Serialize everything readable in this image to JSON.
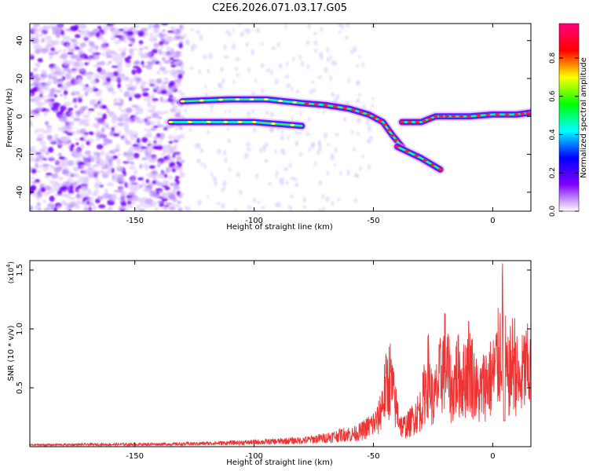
{
  "chart_data": [
    {
      "type": "heatmap",
      "title": "C2E6.2026.071.03.17.G05",
      "xlabel": "Height of straight line (km)",
      "ylabel": "Frequency (Hz)",
      "xlim": [
        -194,
        16
      ],
      "ylim": [
        -50,
        49
      ],
      "xticks": [
        "-150",
        "-100",
        "-50",
        "0"
      ],
      "yticks": [
        "-40",
        "-20",
        "0",
        "20",
        "40"
      ],
      "colorbar": {
        "label": "Normalized spectral amplitude",
        "ticks": [
          "0.0",
          "0.2",
          "0.4",
          "0.6",
          "0.8"
        ],
        "range": [
          0,
          0.98
        ],
        "stops": [
          "#ffffff",
          "#8000ff",
          "#0000ff",
          "#00ffff",
          "#00ff00",
          "#ffff00",
          "#ff0000",
          "#ff0080"
        ]
      },
      "noise_region_km": [
        -194,
        -130
      ],
      "ridges": [
        {
          "name": "upper-branch",
          "points": [
            [
              -130,
              8
            ],
            [
              -110,
              9
            ],
            [
              -95,
              9
            ],
            [
              -80,
              7
            ],
            [
              -70,
              6
            ],
            [
              -60,
              4
            ],
            [
              -52,
              1
            ],
            [
              -46,
              -3
            ],
            [
              -42,
              -10
            ],
            [
              -38,
              -16
            ]
          ]
        },
        {
          "name": "lower-branch",
          "points": [
            [
              -135,
              -3
            ],
            [
              -115,
              -3
            ],
            [
              -100,
              -3
            ],
            [
              -80,
              -5
            ]
          ]
        },
        {
          "name": "tail-branch",
          "points": [
            [
              -40,
              -16
            ],
            [
              -30,
              -22
            ],
            [
              -22,
              -28
            ]
          ]
        },
        {
          "name": "right-branch",
          "points": [
            [
              -38,
              -3
            ],
            [
              -30,
              -3
            ],
            [
              -24,
              0
            ],
            [
              -18,
              0
            ],
            [
              -10,
              0
            ],
            [
              0,
              1
            ],
            [
              10,
              1
            ],
            [
              16,
              2
            ]
          ]
        }
      ]
    },
    {
      "type": "line",
      "xlabel": "Height of straight line (km)",
      "ylabel": "SNR (10 * v/v)",
      "multiplier": "(x10",
      "multiplier_exp": "4",
      "xlim": [
        -194,
        16
      ],
      "ylim": [
        0,
        1.58
      ],
      "xticks": [
        "-150",
        "-100",
        "-50",
        "0"
      ],
      "yticks": [
        "0.5",
        "1.0",
        "1.5"
      ],
      "color": "#ee3333",
      "envelope": [
        [
          -194,
          0.02
        ],
        [
          -160,
          0.025
        ],
        [
          -130,
          0.03
        ],
        [
          -100,
          0.05
        ],
        [
          -80,
          0.07
        ],
        [
          -70,
          0.1
        ],
        [
          -60,
          0.15
        ],
        [
          -55,
          0.2
        ],
        [
          -50,
          0.3
        ],
        [
          -48,
          0.35
        ],
        [
          -45,
          0.75
        ],
        [
          -43,
          0.9
        ],
        [
          -41,
          0.55
        ],
        [
          -38,
          0.25
        ],
        [
          -35,
          0.3
        ],
        [
          -30,
          0.5
        ],
        [
          -27,
          0.95
        ],
        [
          -25,
          0.55
        ],
        [
          -22,
          0.9
        ],
        [
          -20,
          1.15
        ],
        [
          -17,
          0.7
        ],
        [
          -15,
          0.95
        ],
        [
          -12,
          0.85
        ],
        [
          -10,
          1.1
        ],
        [
          -6,
          0.65
        ],
        [
          -3,
          0.85
        ],
        [
          0,
          0.9
        ],
        [
          3,
          1.2
        ],
        [
          4,
          1.58
        ],
        [
          6,
          0.85
        ],
        [
          9,
          1.15
        ],
        [
          11,
          0.75
        ],
        [
          13,
          1.0
        ],
        [
          16,
          1.0
        ]
      ]
    }
  ]
}
